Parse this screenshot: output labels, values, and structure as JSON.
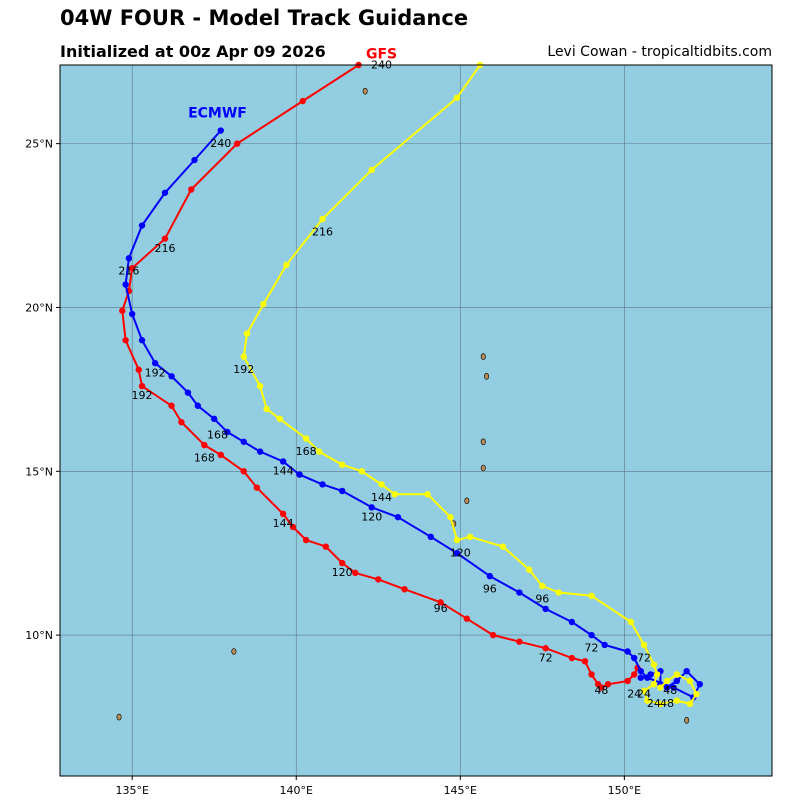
{
  "header": {
    "title": "04W FOUR - Model Track Guidance",
    "subtitle": "Initialized at 00z Apr 09 2026",
    "credit": "Levi Cowan - tropicaltidbits.com"
  },
  "map": {
    "extent": {
      "lon": [
        132.8,
        154.5
      ],
      "lat": [
        5.7,
        27.4
      ]
    },
    "ocean_color": "#93cde2",
    "land_color": "#b68b57",
    "lon_ticks": [
      {
        "value": 135,
        "label": "135°E"
      },
      {
        "value": 140,
        "label": "140°E"
      },
      {
        "value": 145,
        "label": "145°E"
      },
      {
        "value": 150,
        "label": "150°E"
      }
    ],
    "lat_ticks": [
      {
        "value": 10,
        "label": "10°N"
      },
      {
        "value": 15,
        "label": "15°N"
      },
      {
        "value": 20,
        "label": "20°N"
      },
      {
        "value": 25,
        "label": "25°N"
      }
    ],
    "islands": [
      [
        134.6,
        7.5
      ],
      [
        138.1,
        9.5
      ],
      [
        144.8,
        13.4
      ],
      [
        145.7,
        15.1
      ],
      [
        145.7,
        15.9
      ],
      [
        145.8,
        17.9
      ],
      [
        145.7,
        18.5
      ],
      [
        145.2,
        14.1
      ],
      [
        151.9,
        7.4
      ],
      [
        142.1,
        26.6
      ]
    ]
  },
  "tracks": [
    {
      "name": "GFS",
      "color": "#ff0000",
      "label_lon": 142.6,
      "label_lat": 27.6,
      "points": [
        [
          150.4,
          9.0
        ],
        [
          150.3,
          8.8
        ],
        [
          150.1,
          8.6
        ],
        [
          149.5,
          8.5
        ],
        [
          149.3,
          8.4
        ],
        [
          149.2,
          8.5
        ],
        [
          149.0,
          8.8
        ],
        [
          148.8,
          9.2
        ],
        [
          148.4,
          9.3
        ],
        [
          147.6,
          9.6
        ],
        [
          146.8,
          9.8
        ],
        [
          146.0,
          10.0
        ],
        [
          145.2,
          10.5
        ],
        [
          144.4,
          11.0
        ],
        [
          143.3,
          11.4
        ],
        [
          142.5,
          11.7
        ],
        [
          141.8,
          11.9
        ],
        [
          141.4,
          12.2
        ],
        [
          140.9,
          12.7
        ],
        [
          140.3,
          12.9
        ],
        [
          139.9,
          13.3
        ],
        [
          139.6,
          13.7
        ],
        [
          138.8,
          14.5
        ],
        [
          138.4,
          15.0
        ],
        [
          137.7,
          15.5
        ],
        [
          137.2,
          15.8
        ],
        [
          136.5,
          16.5
        ],
        [
          136.2,
          17.0
        ],
        [
          135.3,
          17.6
        ],
        [
          135.2,
          18.1
        ],
        [
          134.8,
          19.0
        ],
        [
          134.7,
          19.9
        ],
        [
          134.9,
          20.5
        ],
        [
          135.0,
          21.2
        ],
        [
          136.0,
          22.1
        ],
        [
          136.8,
          23.6
        ],
        [
          138.2,
          25.0
        ],
        [
          140.2,
          26.3
        ],
        [
          141.9,
          27.4
        ]
      ],
      "labels": [
        {
          "text": "24",
          "lon": 150.3,
          "lat": 8.1
        },
        {
          "text": "48",
          "lon": 149.3,
          "lat": 8.2
        },
        {
          "text": "72",
          "lon": 147.6,
          "lat": 9.2
        },
        {
          "text": "96",
          "lon": 144.4,
          "lat": 10.7
        },
        {
          "text": "120",
          "lon": 141.4,
          "lat": 11.8
        },
        {
          "text": "144",
          "lon": 139.6,
          "lat": 13.3
        },
        {
          "text": "168",
          "lon": 137.2,
          "lat": 15.3
        },
        {
          "text": "192",
          "lon": 135.3,
          "lat": 17.2
        },
        {
          "text": "216",
          "lon": 136.0,
          "lat": 21.7
        },
        {
          "text": "240",
          "lon": 142.6,
          "lat": 27.3
        }
      ]
    },
    {
      "name": "ECMWF",
      "color": "#0000ff",
      "label_lon": 137.6,
      "label_lat": 25.8,
      "points": [
        [
          150.5,
          8.7
        ],
        [
          150.8,
          8.8
        ],
        [
          151.1,
          8.9
        ],
        [
          151.1,
          8.5
        ],
        [
          151.3,
          8.4
        ],
        [
          151.6,
          8.6
        ],
        [
          151.9,
          8.9
        ],
        [
          152.3,
          8.5
        ],
        [
          152.1,
          8.1
        ],
        [
          151.5,
          8.4
        ],
        [
          150.7,
          8.7
        ],
        [
          150.5,
          8.9
        ],
        [
          150.3,
          9.3
        ],
        [
          150.1,
          9.5
        ],
        [
          149.4,
          9.7
        ],
        [
          149.0,
          10.0
        ],
        [
          148.4,
          10.4
        ],
        [
          147.6,
          10.8
        ],
        [
          146.8,
          11.3
        ],
        [
          145.9,
          11.8
        ],
        [
          144.9,
          12.5
        ],
        [
          144.1,
          13.0
        ],
        [
          143.1,
          13.6
        ],
        [
          142.3,
          13.9
        ],
        [
          141.4,
          14.4
        ],
        [
          140.8,
          14.6
        ],
        [
          140.1,
          14.9
        ],
        [
          139.6,
          15.3
        ],
        [
          138.9,
          15.6
        ],
        [
          138.4,
          15.9
        ],
        [
          137.9,
          16.2
        ],
        [
          137.5,
          16.6
        ],
        [
          137.0,
          17.0
        ],
        [
          136.7,
          17.4
        ],
        [
          136.2,
          17.9
        ],
        [
          135.7,
          18.3
        ],
        [
          135.3,
          19.0
        ],
        [
          135.0,
          19.8
        ],
        [
          134.8,
          20.7
        ],
        [
          134.9,
          21.5
        ],
        [
          135.3,
          22.5
        ],
        [
          136.0,
          23.5
        ],
        [
          136.9,
          24.5
        ],
        [
          137.7,
          25.4
        ]
      ],
      "labels": [
        {
          "text": "24",
          "lon": 150.6,
          "lat": 8.1
        },
        {
          "text": "48",
          "lon": 151.4,
          "lat": 8.2
        },
        {
          "text": "72",
          "lon": 150.6,
          "lat": 9.2
        },
        {
          "text": "72",
          "lon": 149.0,
          "lat": 9.5
        },
        {
          "text": "96",
          "lon": 145.9,
          "lat": 11.3
        },
        {
          "text": "120",
          "lon": 142.3,
          "lat": 13.5
        },
        {
          "text": "144",
          "lon": 139.6,
          "lat": 14.9
        },
        {
          "text": "168",
          "lon": 137.6,
          "lat": 16.0
        },
        {
          "text": "192",
          "lon": 135.7,
          "lat": 17.9
        },
        {
          "text": "216",
          "lon": 134.9,
          "lat": 21.0
        },
        {
          "text": "240",
          "lon": 137.7,
          "lat": 24.9
        }
      ]
    },
    {
      "name": "",
      "color": "#ffff00",
      "points": [
        [
          151.1,
          8.4
        ],
        [
          151.3,
          8.6
        ],
        [
          151.6,
          8.8
        ],
        [
          152.0,
          8.6
        ],
        [
          152.2,
          8.2
        ],
        [
          152.0,
          7.9
        ],
        [
          151.6,
          8.0
        ],
        [
          151.1,
          7.9
        ],
        [
          150.7,
          8.0
        ],
        [
          150.6,
          8.3
        ],
        [
          150.9,
          8.5
        ],
        [
          151.0,
          8.8
        ],
        [
          150.9,
          9.1
        ],
        [
          150.6,
          9.7
        ],
        [
          150.2,
          10.4
        ],
        [
          149.0,
          11.2
        ],
        [
          148.0,
          11.3
        ],
        [
          147.5,
          11.5
        ],
        [
          147.1,
          12.0
        ],
        [
          146.3,
          12.7
        ],
        [
          145.3,
          13.0
        ],
        [
          144.9,
          12.9
        ],
        [
          144.7,
          13.6
        ],
        [
          144.0,
          14.3
        ],
        [
          143.0,
          14.3
        ],
        [
          142.6,
          14.6
        ],
        [
          142.0,
          15.0
        ],
        [
          141.4,
          15.2
        ],
        [
          140.7,
          15.6
        ],
        [
          140.3,
          16.0
        ],
        [
          139.5,
          16.6
        ],
        [
          139.1,
          16.9
        ],
        [
          138.9,
          17.6
        ],
        [
          138.4,
          18.5
        ],
        [
          138.5,
          19.2
        ],
        [
          139.0,
          20.1
        ],
        [
          139.7,
          21.3
        ],
        [
          140.8,
          22.7
        ],
        [
          142.3,
          24.2
        ],
        [
          144.9,
          26.4
        ],
        [
          145.6,
          27.4
        ]
      ],
      "labels": [
        {
          "text": "24",
          "lon": 150.9,
          "lat": 7.8
        },
        {
          "text": "48",
          "lon": 151.3,
          "lat": 7.8
        },
        {
          "text": "96",
          "lon": 147.5,
          "lat": 11.0
        },
        {
          "text": "120",
          "lon": 145.0,
          "lat": 12.4
        },
        {
          "text": "144",
          "lon": 142.6,
          "lat": 14.1
        },
        {
          "text": "168",
          "lon": 140.3,
          "lat": 15.5
        },
        {
          "text": "192",
          "lon": 138.4,
          "lat": 18.0
        },
        {
          "text": "216",
          "lon": 140.8,
          "lat": 22.2
        }
      ]
    }
  ]
}
